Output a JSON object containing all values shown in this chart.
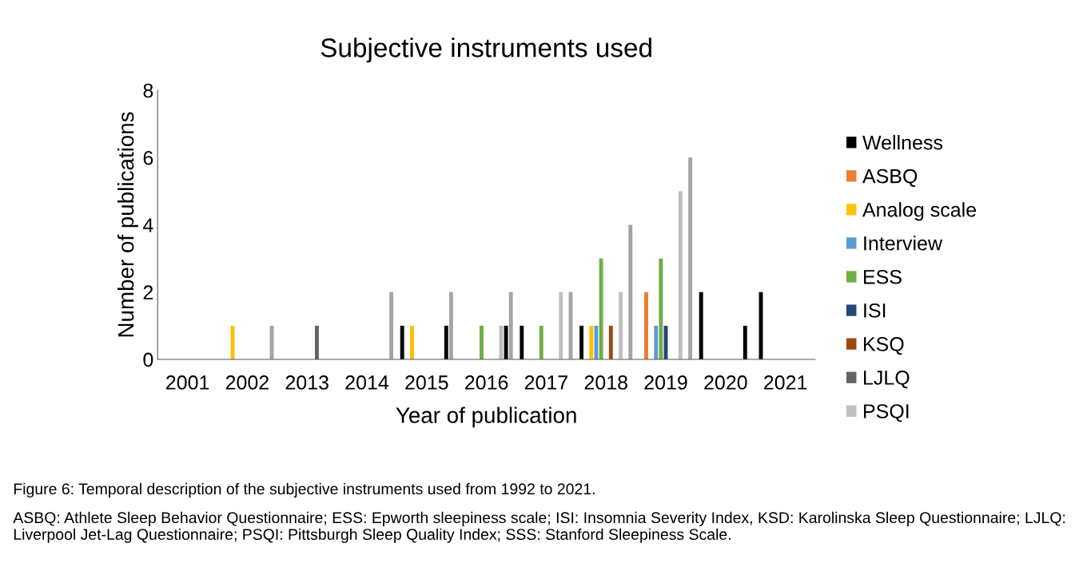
{
  "chart_data": {
    "type": "bar",
    "title": "Subjective instruments used",
    "xlabel": "Year of publication",
    "ylabel": "Number of publications",
    "categories": [
      "2001",
      "2002",
      "2013",
      "2014",
      "2015",
      "2016",
      "2017",
      "2018",
      "2019",
      "2020",
      "2021"
    ],
    "series": [
      {
        "name": "Wellness",
        "color": "#000000",
        "values": [
          null,
          null,
          null,
          null,
          1,
          null,
          1,
          1,
          null,
          2,
          2
        ]
      },
      {
        "name": "ASBQ",
        "color": "#ed7d31",
        "values": [
          null,
          null,
          null,
          null,
          null,
          null,
          null,
          null,
          2,
          null,
          null
        ]
      },
      {
        "name": "Analog scale",
        "color": "#ffc000",
        "values": [
          null,
          1,
          null,
          null,
          1,
          null,
          null,
          1,
          null,
          null,
          null
        ]
      },
      {
        "name": "Interview",
        "color": "#5b9bd5",
        "values": [
          null,
          null,
          null,
          null,
          null,
          null,
          null,
          1,
          1,
          null,
          null
        ]
      },
      {
        "name": "ESS",
        "color": "#70ad47",
        "values": [
          null,
          null,
          null,
          null,
          null,
          1,
          1,
          3,
          3,
          null,
          null
        ]
      },
      {
        "name": "ISI",
        "color": "#264478",
        "values": [
          null,
          null,
          null,
          null,
          null,
          null,
          null,
          null,
          1,
          null,
          null
        ]
      },
      {
        "name": "KSQ",
        "color": "#9e480e",
        "values": [
          null,
          null,
          null,
          null,
          null,
          null,
          null,
          1,
          null,
          null,
          null
        ]
      },
      {
        "name": "LJLQ",
        "color": "#636363",
        "values": [
          null,
          null,
          1,
          null,
          null,
          null,
          null,
          null,
          null,
          null,
          null
        ]
      },
      {
        "name": "PSQI",
        "color": "#bfbfbf",
        "values": [
          null,
          null,
          null,
          null,
          null,
          1,
          2,
          2,
          5,
          null,
          null
        ]
      },
      {
        "color": "#000000",
        "values": [
          null,
          null,
          null,
          null,
          1,
          1,
          null,
          null,
          null,
          1,
          null
        ]
      },
      {
        "color": "#a5a5a5",
        "values": [
          null,
          1,
          null,
          2,
          2,
          2,
          2,
          4,
          6,
          null,
          null
        ]
      }
    ],
    "ylim": [
      0,
      8
    ],
    "yticks": [
      0,
      2,
      4,
      6,
      8
    ],
    "legend": "right",
    "annotations": [
      "Figure 6: Temporal description of the subjective instruments used from 1992 to 2021.",
      "ASBQ: Athlete Sleep Behavior Questionnaire; ESS: Epworth sleepiness scale; ISI: Insomnia Severity Index, KSD: Karolinska Sleep Questionnaire; LJLQ: Liverpool Jet-Lag Questionnaire; PSQI: Pittsburgh Sleep Quality Index; SSS: Stanford Sleepiness Scale."
    ]
  }
}
